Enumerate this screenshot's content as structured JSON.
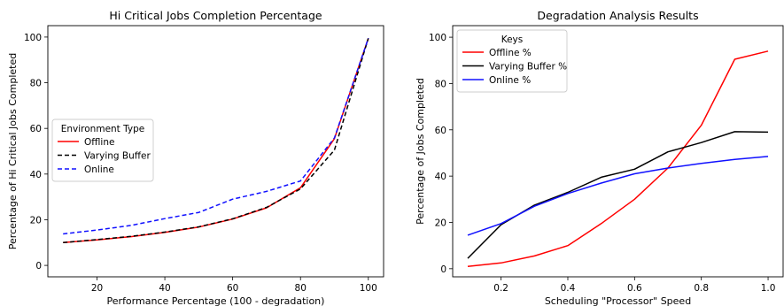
{
  "chart_data": [
    {
      "type": "line",
      "title": "Hi Critical Jobs Completion Percentage",
      "xlabel": "Performance Percentage (100 - degradation)",
      "ylabel": "Percentage of Hi Critical Jobs Completed",
      "xlim": [
        5.5,
        104.5
      ],
      "ylim": [
        -5,
        105
      ],
      "xticks": [
        20,
        40,
        60,
        80,
        100
      ],
      "xtick_labels": [
        "20",
        "40",
        "60",
        "80",
        "100"
      ],
      "yticks": [
        0,
        20,
        40,
        60,
        80,
        100
      ],
      "ytick_labels": [
        "0",
        "20",
        "40",
        "60",
        "80",
        "100"
      ],
      "grid": false,
      "legend": {
        "title": "Environment Type",
        "placement": "center-left"
      },
      "series": [
        {
          "name": "Offline",
          "color": "#ff0000",
          "dash": "solid",
          "x": [
            10,
            20,
            30,
            40,
            50,
            60,
            70,
            80,
            90,
            100
          ],
          "y": [
            10,
            11.2,
            12.6,
            14.5,
            16.8,
            20.3,
            25.2,
            34,
            55.5,
            99.5
          ]
        },
        {
          "name": "Varying Buffer",
          "color": "#000000",
          "dash": "dashed",
          "x": [
            10,
            20,
            30,
            40,
            50,
            60,
            70,
            80,
            90,
            100
          ],
          "y": [
            10,
            11.3,
            12.7,
            14.6,
            16.9,
            20.4,
            25.4,
            33.5,
            50.5,
            99.5
          ]
        },
        {
          "name": "Online",
          "color": "#1010ff",
          "dash": "dashed",
          "x": [
            10,
            20,
            30,
            40,
            50,
            60,
            70,
            80,
            90,
            100
          ],
          "y": [
            13.8,
            15.5,
            17.5,
            20.5,
            23.2,
            29,
            32.4,
            37,
            55.8,
            99.5
          ]
        }
      ]
    },
    {
      "type": "line",
      "title": "Degradation Analysis Results",
      "xlabel": "Scheduling \"Processor\" Speed",
      "ylabel": "Percentage of Jobs Completed",
      "xlim": [
        0.055,
        1.045
      ],
      "ylim": [
        -3.5,
        105
      ],
      "xticks": [
        0.2,
        0.4,
        0.6,
        0.8,
        1.0
      ],
      "xtick_labels": [
        "0.2",
        "0.4",
        "0.6",
        "0.8",
        "1.0"
      ],
      "yticks": [
        0,
        20,
        40,
        60,
        80,
        100
      ],
      "ytick_labels": [
        "0",
        "20",
        "40",
        "60",
        "80",
        "100"
      ],
      "grid": false,
      "legend": {
        "title": "Keys",
        "placement": "upper-left"
      },
      "series": [
        {
          "name": "Offline %",
          "color": "#ff0000",
          "dash": "solid",
          "x": [
            0.1,
            0.2,
            0.3,
            0.4,
            0.5,
            0.6,
            0.7,
            0.8,
            0.9,
            1.0
          ],
          "y": [
            1,
            2.5,
            5.5,
            10,
            19.5,
            30,
            43.5,
            62,
            90.5,
            94
          ]
        },
        {
          "name": "Varying Buffer %",
          "color": "#000000",
          "dash": "solid",
          "x": [
            0.1,
            0.2,
            0.3,
            0.4,
            0.5,
            0.6,
            0.7,
            0.8,
            0.9,
            1.0
          ],
          "y": [
            4.5,
            19,
            27.5,
            33,
            39.5,
            43,
            50.5,
            54.5,
            59.2,
            59
          ]
        },
        {
          "name": "Online %",
          "color": "#1010ff",
          "dash": "solid",
          "x": [
            0.1,
            0.2,
            0.3,
            0.4,
            0.5,
            0.6,
            0.7,
            0.8,
            0.9,
            1.0
          ],
          "y": [
            14.5,
            19.5,
            27,
            32.5,
            37,
            41,
            43.5,
            45.5,
            47.2,
            48.5
          ]
        }
      ]
    }
  ]
}
